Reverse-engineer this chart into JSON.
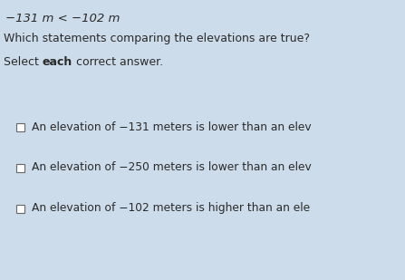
{
  "background_color": "#cddcea",
  "title_line": "−131 m < −102 m",
  "question": "Which statements comparing the elevations are true?",
  "select_pre": "Select ",
  "select_bold": "each",
  "select_post": " correct answer.",
  "options": [
    "An elevation of −131 meters is lower than an elev",
    "An elevation of −250 meters is lower than an elev",
    "An elevation of −102 meters is higher than an ele"
  ],
  "title_fontsize": 9.5,
  "question_fontsize": 9.0,
  "instruction_fontsize": 9.0,
  "option_fontsize": 8.8,
  "text_color": "#2a2a2a",
  "checkbox_color": "#ffffff",
  "checkbox_edge_color": "#666666"
}
